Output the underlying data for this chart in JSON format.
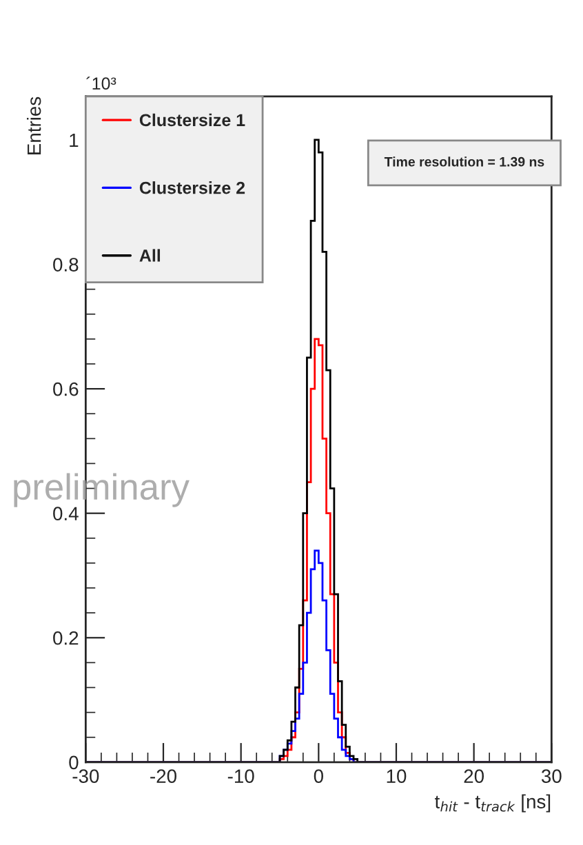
{
  "chart_data": {
    "type": "histogram",
    "ylabel": "Entries",
    "xlabel": "t$_{hit}$ - t$_{track}$ [ns]",
    "bins": [
      -30,
      -5,
      -4.5,
      -4,
      -3.5,
      -3,
      -2.5,
      -2,
      -1.5,
      -1,
      -0.5,
      0,
      0.5,
      1,
      1.5,
      2,
      2.5,
      3,
      3.5,
      4,
      4.5,
      5,
      30
    ],
    "series": [
      {
        "name": "Clustersize 1",
        "color": "#ff0000",
        "values": [
          0,
          0.005,
          0.01,
          0.02,
          0.04,
          0.08,
          0.15,
          0.26,
          0.45,
          0.6,
          0.68,
          0.67,
          0.52,
          0.4,
          0.27,
          0.16,
          0.08,
          0.04,
          0.015,
          0.005,
          0,
          0
        ]
      },
      {
        "name": "Clustersize 2",
        "color": "#0000ff",
        "values": [
          0,
          0.01,
          0.02,
          0.03,
          0.05,
          0.07,
          0.11,
          0.16,
          0.24,
          0.31,
          0.34,
          0.32,
          0.26,
          0.18,
          0.11,
          0.07,
          0.04,
          0.02,
          0.01,
          0.005,
          0,
          0
        ]
      },
      {
        "name": "All",
        "color": "#000000",
        "values": [
          0,
          0.01,
          0.02,
          0.035,
          0.065,
          0.12,
          0.22,
          0.4,
          0.65,
          0.87,
          1.0,
          0.98,
          0.82,
          0.63,
          0.44,
          0.27,
          0.13,
          0.06,
          0.025,
          0.01,
          0.005,
          0
        ]
      }
    ],
    "xlim": [
      -30,
      30
    ],
    "xticks": [
      -30,
      -20,
      -10,
      0,
      10,
      20,
      30
    ],
    "ylim": [
      0,
      1.07
    ],
    "yticks": [
      0,
      0.2,
      0.4,
      0.6,
      0.8,
      1
    ],
    "legend": "top left",
    "grid": false,
    "annotations": [
      "´10³",
      "Time resolution = 1.39 ns",
      "preliminary"
    ]
  }
}
